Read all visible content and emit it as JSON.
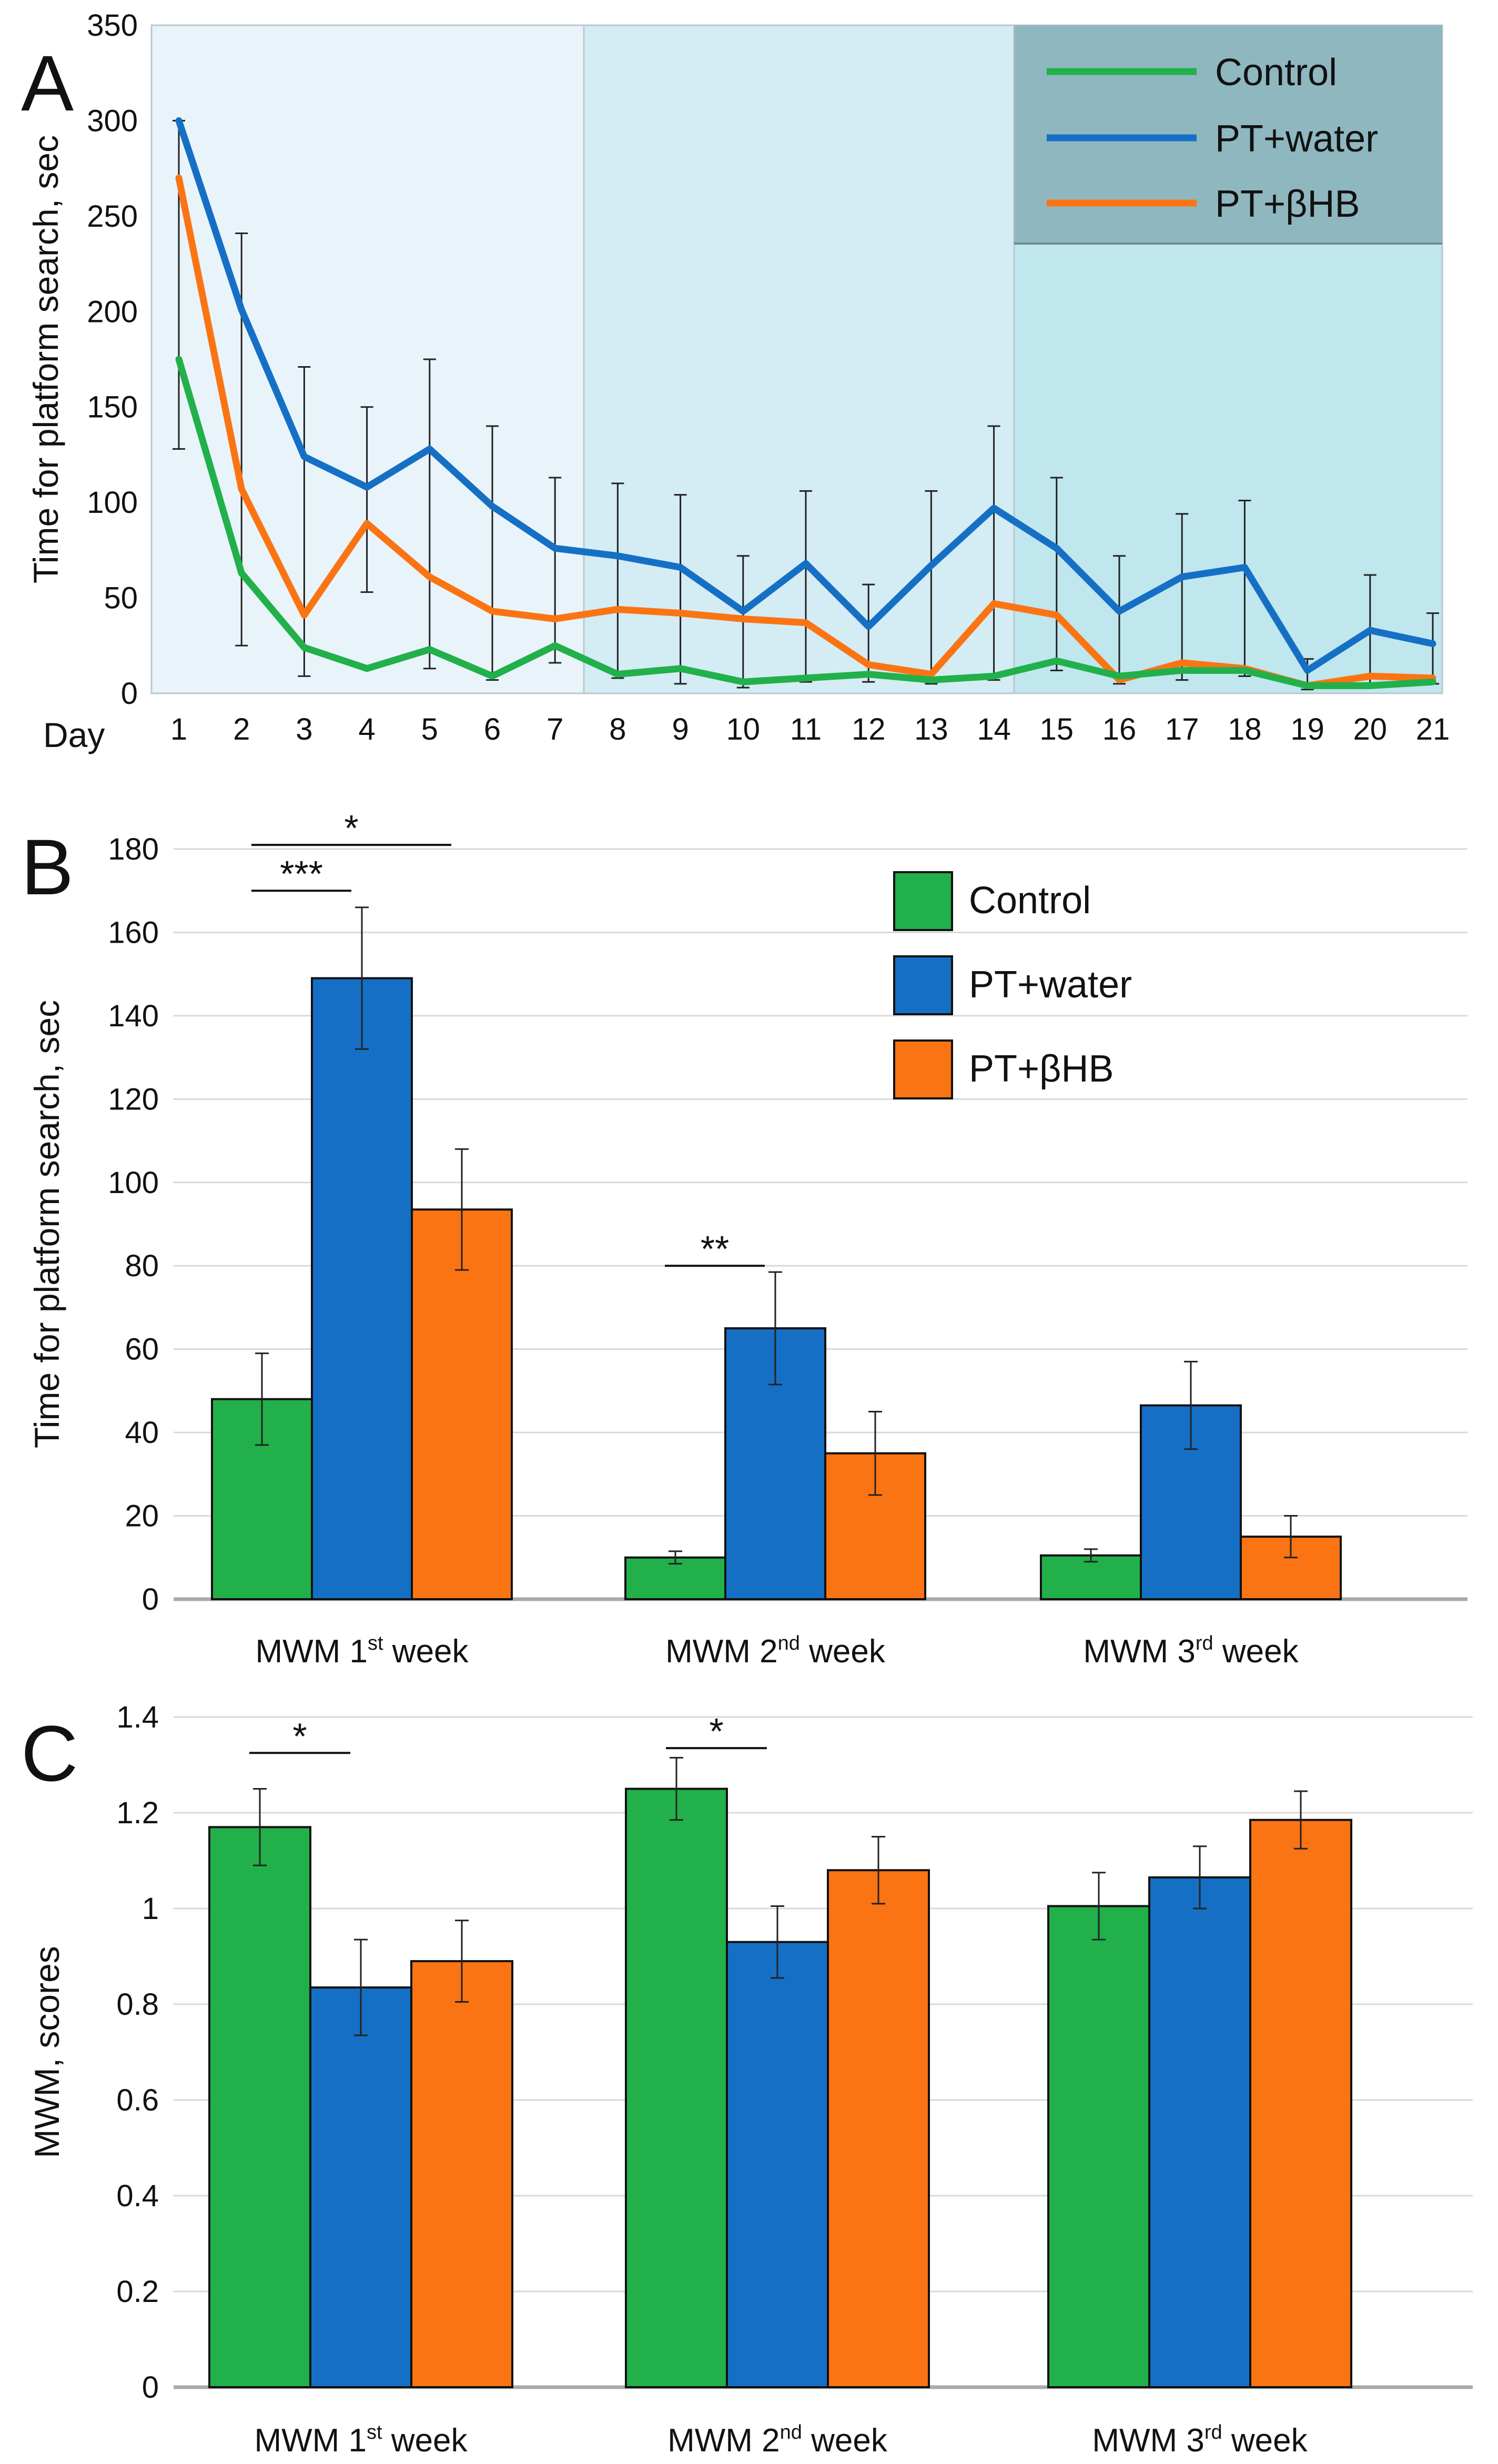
{
  "colors": {
    "control": "#22b04b",
    "pt_water": "#1570c5",
    "pt_bhb": "#fb7414",
    "week1_bg": "#e9f4fa",
    "week2_bg": "#d4ecf3",
    "week3_bg": "#c0e6ee",
    "legend_bg": "#8fb7c0"
  },
  "chart_data": [
    {
      "panel": "A",
      "type": "line",
      "ylabel": "Time for platform search, sec",
      "xlabel": "Day",
      "ylim": [
        0,
        350
      ],
      "yticks": [
        "0",
        "50",
        "100",
        "150",
        "200",
        "250",
        "300",
        "350"
      ],
      "x": [
        "1",
        "2",
        "3",
        "4",
        "5",
        "6",
        "7",
        "8",
        "9",
        "10",
        "11",
        "12",
        "13",
        "14",
        "15",
        "16",
        "17",
        "18",
        "19",
        "20",
        "21"
      ],
      "series": [
        {
          "name": "Control",
          "values": [
            175,
            63,
            24,
            13,
            23,
            9,
            25,
            10,
            13,
            6,
            8,
            10,
            7,
            9,
            17,
            9,
            12,
            12,
            4,
            4,
            6
          ],
          "errors": [
            47,
            38,
            15,
            3,
            10,
            3,
            9,
            2,
            6,
            4,
            2,
            4,
            2,
            3,
            5,
            3,
            3,
            4,
            1,
            2,
            2
          ]
        },
        {
          "name": "PT+water",
          "values": [
            300,
            201,
            124,
            108,
            128,
            98,
            76,
            72,
            66,
            43,
            68,
            35,
            67,
            97,
            76,
            43,
            61,
            66,
            12,
            33,
            26
          ]
        },
        {
          "name": "PT+βHB",
          "values": [
            270,
            107,
            41,
            89,
            61,
            43,
            39,
            44,
            42,
            39,
            37,
            15,
            10,
            47,
            41,
            7,
            16,
            13,
            4,
            9,
            8
          ]
        }
      ],
      "error_bars": [
        {
          "day": "1",
          "low": 128,
          "high": 300
        },
        {
          "day": "2",
          "low": 25,
          "high": 241
        },
        {
          "day": "3",
          "low": 9,
          "high": 171
        },
        {
          "day": "4",
          "low": 53,
          "high": 150
        },
        {
          "day": "5",
          "low": 13,
          "high": 175
        },
        {
          "day": "6",
          "low": 7,
          "high": 140
        },
        {
          "day": "7",
          "low": 16,
          "high": 113
        },
        {
          "day": "8",
          "low": 8,
          "high": 110
        },
        {
          "day": "9",
          "low": 5,
          "high": 104
        },
        {
          "day": "10",
          "low": 3,
          "high": 72
        },
        {
          "day": "11",
          "low": 6,
          "high": 106
        },
        {
          "day": "12",
          "low": 6,
          "high": 57
        },
        {
          "day": "13",
          "low": 5,
          "high": 106
        },
        {
          "day": "14",
          "low": 7,
          "high": 140
        },
        {
          "day": "15",
          "low": 12,
          "high": 113
        },
        {
          "day": "16",
          "low": 5,
          "high": 72
        },
        {
          "day": "17",
          "low": 7,
          "high": 94
        },
        {
          "day": "18",
          "low": 9,
          "high": 101
        },
        {
          "day": "19",
          "low": 2,
          "high": 18
        },
        {
          "day": "20",
          "low": 3,
          "high": 62
        },
        {
          "day": "21",
          "low": 5,
          "high": 42
        }
      ],
      "legend": [
        "Control",
        "PT+water",
        "PT+βHB"
      ],
      "legend_position": "top-right"
    },
    {
      "panel": "B",
      "type": "bar",
      "ylabel": "Time for platform search, sec",
      "ylim": [
        0,
        180
      ],
      "yticks": [
        "0",
        "20",
        "40",
        "60",
        "80",
        "100",
        "120",
        "140",
        "160",
        "180"
      ],
      "categories": [
        {
          "main": "MWM 1",
          "sup": "st",
          "tail": " week"
        },
        {
          "main": "MWM 2",
          "sup": "nd",
          "tail": " week"
        },
        {
          "main": "MWM 3",
          "sup": "rd",
          "tail": " week"
        }
      ],
      "series": [
        {
          "name": "Control",
          "values": [
            48,
            10,
            10.5
          ],
          "errors": [
            11,
            1.5,
            1.5
          ]
        },
        {
          "name": "PT+water",
          "values": [
            149,
            65,
            46.5
          ],
          "errors": [
            17,
            13.5,
            10.5
          ]
        },
        {
          "name": "PT+βHB",
          "values": [
            93.5,
            35,
            15
          ],
          "errors": [
            14.5,
            10,
            5
          ]
        }
      ],
      "significance": [
        {
          "label": "*",
          "from_group": 0,
          "from_series": 0,
          "to_group": 0,
          "to_series": 2,
          "y": 181
        },
        {
          "label": "***",
          "from_group": 0,
          "from_series": 0,
          "to_group": 0,
          "to_series": 1,
          "y": 170
        },
        {
          "label": "**",
          "from_group": 1,
          "from_series": 0,
          "to_group": 1,
          "to_series": 1,
          "y": 80
        }
      ],
      "legend": [
        "Control",
        "PT+water",
        "PT+βHB"
      ],
      "legend_position": "top-right"
    },
    {
      "panel": "C",
      "type": "bar",
      "ylabel": "MWM, scores",
      "ylim": [
        0,
        1.4
      ],
      "yticks": [
        "0",
        "0.2",
        "0.4",
        "0.6",
        "0.8",
        "1",
        "1.2",
        "1.4"
      ],
      "categories": [
        {
          "main": "MWM 1",
          "sup": "st",
          "tail": " week"
        },
        {
          "main": "MWM 2",
          "sup": "nd",
          "tail": " week"
        },
        {
          "main": "MWM 3",
          "sup": "rd",
          "tail": " week"
        }
      ],
      "series": [
        {
          "name": "Control",
          "values": [
            1.17,
            1.25,
            1.005
          ],
          "errors": [
            0.08,
            0.065,
            0.07
          ]
        },
        {
          "name": "PT+water",
          "values": [
            0.835,
            0.93,
            1.065
          ],
          "errors": [
            0.1,
            0.075,
            0.065
          ]
        },
        {
          "name": "PT+βHB",
          "values": [
            0.89,
            1.08,
            1.185
          ],
          "errors": [
            0.085,
            0.07,
            0.06
          ]
        }
      ],
      "significance": [
        {
          "label": "*",
          "from_group": 0,
          "from_series": 0,
          "to_group": 0,
          "to_series": 1,
          "y": 1.325
        },
        {
          "label": "*",
          "from_group": 1,
          "from_series": 0,
          "to_group": 1,
          "to_series": 1,
          "y": 1.335
        }
      ]
    }
  ]
}
